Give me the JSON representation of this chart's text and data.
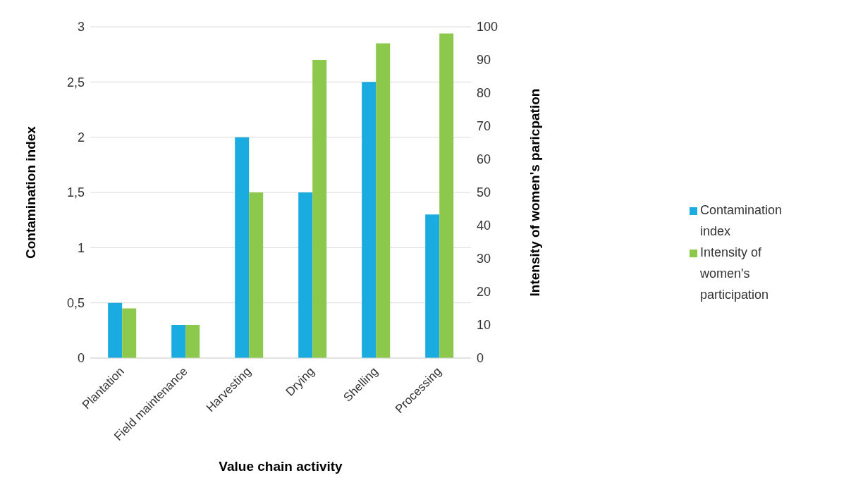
{
  "chart_data": {
    "type": "bar",
    "xlabel": "Value chain activity",
    "ylabel": "Contamination index",
    "y2label": "Intensity of women's paricpation",
    "categories": [
      "Plantation",
      "Field maintenance",
      "Harvesting",
      "Drying",
      "Shelling",
      "Processing"
    ],
    "series": [
      {
        "name": "Contamination index",
        "color": "#1aabe0",
        "values": [
          0.5,
          0.3,
          2,
          1.5,
          2.5,
          1.3
        ]
      },
      {
        "name": "Intensity of women's participation",
        "color": "#8cc84b",
        "axis": "y2",
        "values": [
          15,
          10,
          50,
          90,
          95,
          98
        ]
      }
    ],
    "ylim": [
      0,
      3
    ],
    "yticks": [
      0,
      {
        "value": 0.5,
        "label": "0,5"
      },
      1,
      {
        "value": 1.5,
        "label": "1,5"
      },
      2,
      {
        "value": 2.5,
        "label": "2,5"
      },
      3
    ],
    "y2lim": [
      0,
      100
    ],
    "y2ticks": [
      0,
      10,
      20,
      30,
      40,
      50,
      60,
      70,
      80,
      90,
      100
    ],
    "grid": "y",
    "legend": "right"
  }
}
